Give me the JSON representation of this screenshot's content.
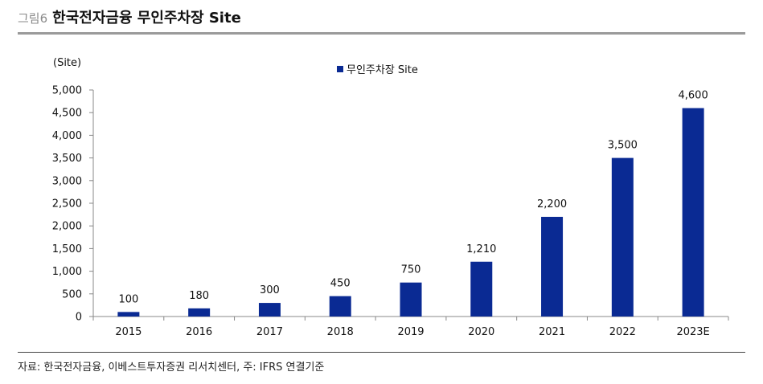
{
  "figure": {
    "label": "그림6",
    "title": "한국전자금융 무인주차장 Site",
    "source": "자료: 한국전자금융, 이베스트투자증권 리서치센터, 주: IFRS 연결기준"
  },
  "colors": {
    "bar": "#0a2a93",
    "axis": "#888888",
    "rule": "#9a9a9a"
  },
  "chart_data": {
    "type": "bar",
    "title": "한국전자금융 무인주차장 Site",
    "unit_label": "(Site)",
    "xlabel": "",
    "ylabel": "(Site)",
    "categories": [
      "2015",
      "2016",
      "2017",
      "2018",
      "2019",
      "2020",
      "2021",
      "2022",
      "2023E"
    ],
    "series": [
      {
        "name": "무인주차장 Site",
        "values": [
          100,
          180,
          300,
          450,
          750,
          1210,
          2200,
          3500,
          4600
        ]
      }
    ],
    "data_labels": [
      "100",
      "180",
      "300",
      "450",
      "750",
      "1,210",
      "2,200",
      "3,500",
      "4,600"
    ],
    "ylim": [
      0,
      5000
    ],
    "yticks": [
      0,
      500,
      1000,
      1500,
      2000,
      2500,
      3000,
      3500,
      4000,
      4500,
      5000
    ],
    "ytick_labels": [
      "0",
      "500",
      "1,000",
      "1,500",
      "2,000",
      "2,500",
      "3,000",
      "3,500",
      "4,000",
      "4,500",
      "5,000"
    ],
    "legend": "top-center",
    "grid": false
  }
}
